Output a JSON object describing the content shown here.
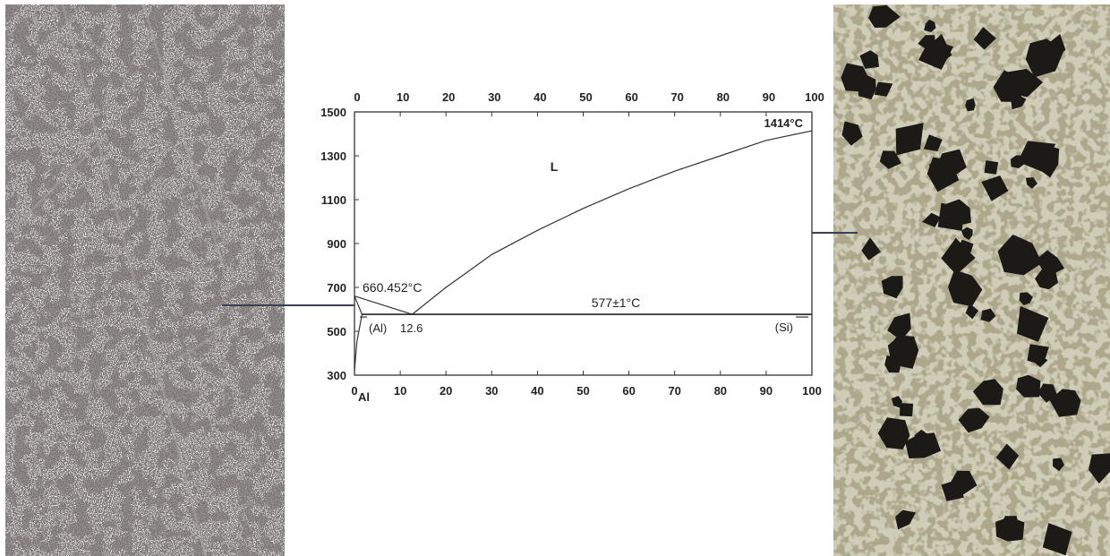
{
  "diagram": {
    "x_axis_top_ticks": [
      "0",
      "10",
      "20",
      "30",
      "40",
      "50",
      "60",
      "70",
      "80",
      "90",
      "100"
    ],
    "x_axis_bottom_ticks": [
      "0",
      "10",
      "20",
      "30",
      "40",
      "50",
      "60",
      "70",
      "80",
      "90",
      "100"
    ],
    "y_axis_ticks": [
      "1500",
      "1300",
      "1100",
      "900",
      "700",
      "500",
      "300"
    ],
    "phase_liquid": "L",
    "phase_al": "(Al)",
    "phase_si": "(Si)",
    "al_melting_label": "660.452°C",
    "si_melting_label": "1414°C",
    "eutectic_temp_label": "577±1°C",
    "eutectic_comp_label": "12.6",
    "element_left": "Al"
  },
  "chart_data": {
    "type": "line",
    "x_range": [
      0,
      100
    ],
    "y_range": [
      300,
      1500
    ],
    "x_ticks": [
      0,
      10,
      20,
      30,
      40,
      50,
      60,
      70,
      80,
      90,
      100
    ],
    "y_ticks": [
      300,
      500,
      700,
      900,
      1100,
      1300,
      1500
    ],
    "series": [
      {
        "values": [
          [
            0,
            660.452
          ],
          [
            12.6,
            577
          ]
        ]
      },
      {
        "values": [
          [
            12.6,
            577
          ],
          [
            20,
            700
          ],
          [
            30,
            850
          ],
          [
            40,
            960
          ],
          [
            50,
            1060
          ],
          [
            60,
            1150
          ],
          [
            70,
            1230
          ],
          [
            80,
            1300
          ],
          [
            90,
            1370
          ],
          [
            100,
            1414
          ]
        ]
      },
      {
        "values": [
          [
            1.65,
            577
          ],
          [
            100,
            577
          ]
        ]
      },
      {
        "values": [
          [
            0,
            660.452
          ],
          [
            1.65,
            577
          ],
          [
            0.5,
            450
          ],
          [
            0,
            320
          ]
        ]
      }
    ],
    "annotations": [
      {
        "text": "660.452°C",
        "x": 0,
        "y": 660.452
      },
      {
        "text": "1414°C",
        "x": 100,
        "y": 1414
      },
      {
        "text": "577±1°C",
        "x": 50,
        "y": 577
      },
      {
        "text": "12.6",
        "x": 12.6,
        "y": 577
      }
    ]
  }
}
